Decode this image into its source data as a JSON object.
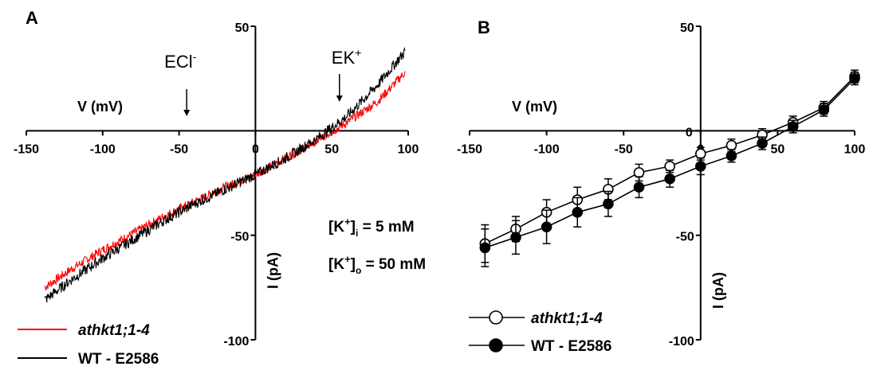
{
  "chart_data": [
    {
      "panel": "A",
      "type": "line",
      "xlabel": "V (mV)",
      "ylabel": "I (pA)",
      "xlim": [
        -150,
        100
      ],
      "ylim": [
        -100,
        50
      ],
      "x_ticks": [
        -150,
        -100,
        -50,
        0,
        50,
        100
      ],
      "y_ticks": [
        50,
        -50,
        -100
      ],
      "annotations": [
        {
          "label": "ECl",
          "superscript": "-",
          "x": -45
        },
        {
          "label": "EK",
          "superscript": "+",
          "x": 55
        }
      ],
      "conditions": {
        "line1": {
          "prefix": "[K",
          "sup": "+",
          "mid": "]",
          "sub": "i",
          "suffix": " = 5 mM"
        },
        "line2": {
          "prefix": "[K",
          "sup": "+",
          "mid": "]",
          "sub": "o",
          "suffix": " = 50 mM"
        }
      },
      "series": [
        {
          "name": "athkt1;1-4",
          "color": "#ff0000",
          "x": [
            -138,
            -120,
            -100,
            -80,
            -60,
            -40,
            -20,
            0,
            20,
            40,
            60,
            80,
            98
          ],
          "y": [
            -75,
            -66,
            -57,
            -49,
            -41,
            -34,
            -27,
            -21,
            -13,
            -5,
            4,
            14,
            28
          ]
        },
        {
          "name": "WT - E2586",
          "color": "#000000",
          "x": [
            -138,
            -120,
            -100,
            -80,
            -60,
            -40,
            -20,
            0,
            20,
            40,
            60,
            80,
            98
          ],
          "y": [
            -81,
            -71,
            -61,
            -52,
            -43,
            -35,
            -28,
            -21,
            -13,
            -4,
            7,
            22,
            38
          ]
        }
      ]
    },
    {
      "panel": "B",
      "type": "line",
      "xlabel": "V (mV)",
      "ylabel": "I (pA)",
      "xlim": [
        -150,
        100
      ],
      "ylim": [
        -100,
        50
      ],
      "x_ticks": [
        -150,
        -100,
        -50,
        0,
        50,
        100
      ],
      "y_ticks": [
        50,
        0,
        -50,
        -100
      ],
      "series": [
        {
          "name": "athkt1;1-4",
          "marker": "open-circle",
          "x": [
            -140,
            -120,
            -100,
            -80,
            -60,
            -40,
            -20,
            0,
            20,
            40,
            60,
            80,
            100
          ],
          "y": [
            -54,
            -47,
            -39,
            -33,
            -28,
            -20,
            -17,
            -11,
            -7,
            -2,
            4,
            11,
            26
          ],
          "err": [
            9,
            6,
            6,
            6,
            5,
            4,
            3,
            3,
            3,
            3,
            3,
            3,
            3
          ]
        },
        {
          "name": "WT - E2586",
          "marker": "filled-circle",
          "x": [
            -140,
            -120,
            -100,
            -80,
            -60,
            -40,
            -20,
            0,
            20,
            40,
            60,
            80,
            100
          ],
          "y": [
            -56,
            -51,
            -46,
            -39,
            -35,
            -27,
            -23,
            -17,
            -12,
            -6,
            2,
            10,
            25
          ],
          "err": [
            9,
            8,
            8,
            7,
            6,
            5,
            4,
            4,
            3,
            3,
            3,
            3,
            3
          ]
        }
      ]
    }
  ]
}
